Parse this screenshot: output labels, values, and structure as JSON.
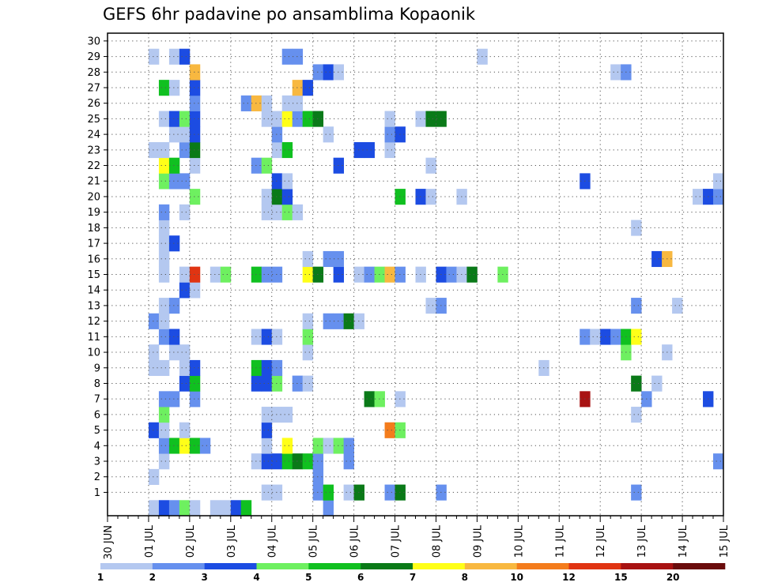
{
  "title": "GEFS 6hr padavine po ansamblima Kopaonik",
  "chart_data": {
    "type": "heatmap",
    "title": "GEFS 6hr padavine po ansamblima Kopaonik",
    "x_ticks": [
      "30 JUN",
      "01 JUL",
      "02 JUL",
      "03 JUL",
      "04 JUL",
      "05 JUL",
      "06 JUL",
      "07 JUL",
      "08 JUL",
      "09 JUL",
      "10 JUL",
      "11 JUL",
      "12 JUL",
      "13 JUL",
      "14 JUL",
      "15 JUL"
    ],
    "y_ticks": [
      "1",
      "2",
      "3",
      "4",
      "5",
      "6",
      "7",
      "8",
      "9",
      "10",
      "11",
      "12",
      "13",
      "14",
      "15",
      "16",
      "17",
      "18",
      "19",
      "20",
      "21",
      "22",
      "23",
      "24",
      "25",
      "26",
      "27",
      "28",
      "29",
      "30"
    ],
    "x_steps": 60,
    "steps_per_day": 4,
    "members": 31,
    "grid": true,
    "colorbar": {
      "labels": [
        "1",
        "2",
        "3",
        "4",
        "5",
        "6",
        "7",
        "8",
        "10",
        "12",
        "15",
        "20"
      ],
      "colors": [
        "#b4c8f0",
        "#6690ee",
        "#1c4ce2",
        "#6ef060",
        "#10c020",
        "#0a7a18",
        "#ffff18",
        "#f8b840",
        "#f47c1c",
        "#e03412",
        "#a81212",
        "#6a0c0c"
      ]
    },
    "cells": [
      [
        4,
        0,
        1
      ],
      [
        5,
        0,
        3
      ],
      [
        6,
        0,
        2
      ],
      [
        7,
        0,
        4
      ],
      [
        8,
        0,
        1
      ],
      [
        10,
        0,
        1
      ],
      [
        11,
        0,
        1
      ],
      [
        12,
        0,
        3
      ],
      [
        13,
        0,
        5
      ],
      [
        21,
        0,
        2
      ],
      [
        15,
        1,
        1
      ],
      [
        16,
        1,
        1
      ],
      [
        20,
        1,
        2
      ],
      [
        21,
        1,
        5
      ],
      [
        23,
        1,
        1
      ],
      [
        24,
        1,
        6
      ],
      [
        27,
        1,
        2
      ],
      [
        28,
        1,
        6
      ],
      [
        51,
        1,
        2
      ],
      [
        4,
        2,
        1
      ],
      [
        20,
        2,
        2
      ],
      [
        5,
        3,
        1
      ],
      [
        14,
        3,
        1
      ],
      [
        15,
        3,
        3
      ],
      [
        16,
        3,
        3
      ],
      [
        17,
        3,
        5
      ],
      [
        18,
        3,
        6
      ],
      [
        19,
        3,
        5
      ],
      [
        20,
        3,
        2
      ],
      [
        23,
        3,
        2
      ],
      [
        32,
        1,
        2
      ],
      [
        59,
        3,
        2
      ],
      [
        5,
        4,
        2
      ],
      [
        6,
        4,
        5
      ],
      [
        7,
        4,
        7
      ],
      [
        8,
        4,
        5
      ],
      [
        9,
        4,
        2
      ],
      [
        15,
        4,
        1
      ],
      [
        17,
        4,
        7
      ],
      [
        20,
        4,
        4
      ],
      [
        21,
        4,
        1
      ],
      [
        22,
        4,
        4
      ],
      [
        23,
        4,
        2
      ],
      [
        4,
        5,
        3
      ],
      [
        5,
        5,
        1
      ],
      [
        7,
        5,
        1
      ],
      [
        15,
        5,
        3
      ],
      [
        27,
        5,
        9
      ],
      [
        28,
        5,
        4
      ],
      [
        5,
        6,
        4
      ],
      [
        15,
        6,
        1
      ],
      [
        16,
        6,
        1
      ],
      [
        17,
        6,
        1
      ],
      [
        51,
        6,
        1
      ],
      [
        5,
        7,
        2
      ],
      [
        6,
        7,
        2
      ],
      [
        8,
        7,
        2
      ],
      [
        25,
        7,
        6
      ],
      [
        26,
        7,
        4
      ],
      [
        28,
        7,
        1
      ],
      [
        46,
        7,
        11
      ],
      [
        52,
        7,
        2
      ],
      [
        58,
        7,
        3
      ],
      [
        7,
        8,
        3
      ],
      [
        8,
        8,
        5
      ],
      [
        14,
        8,
        3
      ],
      [
        15,
        8,
        3
      ],
      [
        16,
        8,
        4
      ],
      [
        18,
        8,
        2
      ],
      [
        19,
        8,
        1
      ],
      [
        53,
        8,
        1
      ],
      [
        51,
        8,
        6
      ],
      [
        4,
        9,
        1
      ],
      [
        5,
        9,
        1
      ],
      [
        7,
        9,
        1
      ],
      [
        8,
        9,
        3
      ],
      [
        14,
        9,
        5
      ],
      [
        15,
        9,
        3
      ],
      [
        16,
        9,
        2
      ],
      [
        42,
        9,
        1
      ],
      [
        4,
        10,
        1
      ],
      [
        6,
        10,
        1
      ],
      [
        7,
        10,
        1
      ],
      [
        19,
        10,
        1
      ],
      [
        50,
        10,
        4
      ],
      [
        54,
        10,
        1
      ],
      [
        5,
        11,
        2
      ],
      [
        6,
        11,
        3
      ],
      [
        14,
        11,
        1
      ],
      [
        15,
        11,
        3
      ],
      [
        16,
        11,
        1
      ],
      [
        19,
        11,
        4
      ],
      [
        46,
        11,
        2
      ],
      [
        47,
        11,
        1
      ],
      [
        48,
        11,
        3
      ],
      [
        49,
        11,
        2
      ],
      [
        50,
        11,
        5
      ],
      [
        51,
        11,
        7
      ],
      [
        4,
        12,
        2
      ],
      [
        5,
        12,
        1
      ],
      [
        19,
        12,
        1
      ],
      [
        21,
        12,
        2
      ],
      [
        22,
        12,
        2
      ],
      [
        23,
        12,
        6
      ],
      [
        24,
        12,
        1
      ],
      [
        5,
        13,
        1
      ],
      [
        6,
        13,
        2
      ],
      [
        31,
        13,
        1
      ],
      [
        32,
        13,
        2
      ],
      [
        51,
        13,
        2
      ],
      [
        55,
        13,
        1
      ],
      [
        7,
        14,
        3
      ],
      [
        8,
        14,
        1
      ],
      [
        5,
        15,
        1
      ],
      [
        7,
        15,
        1
      ],
      [
        8,
        15,
        10
      ],
      [
        10,
        15,
        1
      ],
      [
        11,
        15,
        4
      ],
      [
        14,
        15,
        5
      ],
      [
        15,
        15,
        2
      ],
      [
        16,
        15,
        2
      ],
      [
        19,
        15,
        7
      ],
      [
        20,
        15,
        6
      ],
      [
        22,
        15,
        3
      ],
      [
        24,
        15,
        1
      ],
      [
        25,
        15,
        2
      ],
      [
        26,
        15,
        4
      ],
      [
        27,
        15,
        8
      ],
      [
        28,
        15,
        2
      ],
      [
        30,
        15,
        1
      ],
      [
        32,
        15,
        3
      ],
      [
        33,
        15,
        2
      ],
      [
        34,
        15,
        1
      ],
      [
        35,
        15,
        6
      ],
      [
        38,
        15,
        4
      ],
      [
        5,
        16,
        1
      ],
      [
        19,
        16,
        1
      ],
      [
        21,
        16,
        2
      ],
      [
        22,
        16,
        2
      ],
      [
        53,
        16,
        3
      ],
      [
        54,
        16,
        8
      ],
      [
        5,
        17,
        1
      ],
      [
        6,
        17,
        3
      ],
      [
        5,
        18,
        1
      ],
      [
        51,
        18,
        1
      ],
      [
        5,
        19,
        2
      ],
      [
        7,
        19,
        1
      ],
      [
        15,
        19,
        1
      ],
      [
        16,
        19,
        1
      ],
      [
        17,
        19,
        4
      ],
      [
        18,
        19,
        1
      ],
      [
        8,
        20,
        4
      ],
      [
        15,
        20,
        1
      ],
      [
        16,
        20,
        6
      ],
      [
        17,
        20,
        3
      ],
      [
        28,
        20,
        5
      ],
      [
        30,
        20,
        3
      ],
      [
        31,
        20,
        1
      ],
      [
        34,
        20,
        1
      ],
      [
        57,
        20,
        1
      ],
      [
        58,
        20,
        3
      ],
      [
        59,
        20,
        2
      ],
      [
        5,
        21,
        4
      ],
      [
        6,
        21,
        2
      ],
      [
        7,
        21,
        2
      ],
      [
        16,
        21,
        3
      ],
      [
        17,
        21,
        1
      ],
      [
        46,
        21,
        3
      ],
      [
        59,
        21,
        1
      ],
      [
        5,
        22,
        7
      ],
      [
        6,
        22,
        5
      ],
      [
        8,
        22,
        1
      ],
      [
        14,
        22,
        2
      ],
      [
        15,
        22,
        4
      ],
      [
        22,
        22,
        3
      ],
      [
        31,
        22,
        1
      ],
      [
        4,
        23,
        1
      ],
      [
        5,
        23,
        1
      ],
      [
        7,
        23,
        2
      ],
      [
        8,
        23,
        6
      ],
      [
        16,
        23,
        1
      ],
      [
        17,
        23,
        5
      ],
      [
        24,
        23,
        3
      ],
      [
        25,
        23,
        3
      ],
      [
        27,
        23,
        1
      ],
      [
        6,
        24,
        1
      ],
      [
        7,
        24,
        1
      ],
      [
        8,
        24,
        3
      ],
      [
        16,
        24,
        2
      ],
      [
        21,
        24,
        1
      ],
      [
        27,
        24,
        2
      ],
      [
        28,
        24,
        3
      ],
      [
        5,
        25,
        1
      ],
      [
        6,
        25,
        3
      ],
      [
        7,
        25,
        4
      ],
      [
        8,
        25,
        3
      ],
      [
        15,
        25,
        1
      ],
      [
        16,
        25,
        1
      ],
      [
        17,
        25,
        7
      ],
      [
        18,
        25,
        2
      ],
      [
        19,
        25,
        5
      ],
      [
        20,
        25,
        6
      ],
      [
        27,
        25,
        1
      ],
      [
        30,
        25,
        1
      ],
      [
        31,
        25,
        6
      ],
      [
        32,
        25,
        6
      ],
      [
        8,
        26,
        2
      ],
      [
        13,
        26,
        2
      ],
      [
        14,
        26,
        8
      ],
      [
        15,
        26,
        1
      ],
      [
        17,
        26,
        1
      ],
      [
        18,
        26,
        1
      ],
      [
        5,
        27,
        5
      ],
      [
        6,
        27,
        1
      ],
      [
        8,
        27,
        3
      ],
      [
        18,
        27,
        8
      ],
      [
        19,
        27,
        3
      ],
      [
        8,
        28,
        8
      ],
      [
        20,
        28,
        2
      ],
      [
        21,
        28,
        3
      ],
      [
        22,
        28,
        1
      ],
      [
        49,
        28,
        1
      ],
      [
        50,
        28,
        2
      ],
      [
        4,
        29,
        1
      ],
      [
        6,
        29,
        1
      ],
      [
        7,
        29,
        3
      ],
      [
        17,
        29,
        2
      ],
      [
        18,
        29,
        2
      ],
      [
        36,
        29,
        1
      ]
    ]
  }
}
